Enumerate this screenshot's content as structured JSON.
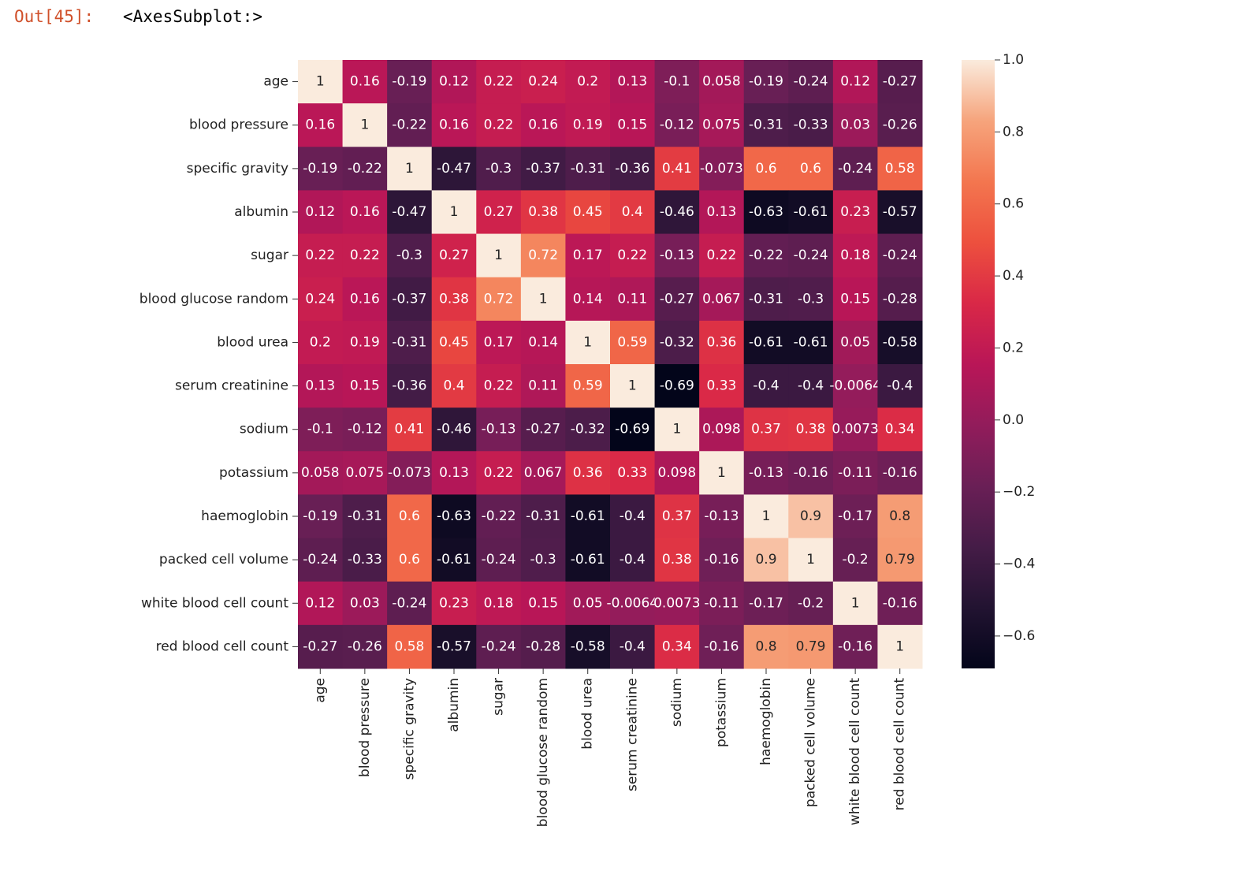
{
  "output_prompt": "Out[45]:",
  "repr": "<AxesSubplot:>",
  "chart_data": {
    "type": "heatmap",
    "categories": [
      "age",
      "blood pressure",
      "specific gravity",
      "albumin",
      "sugar",
      "blood glucose random",
      "blood urea",
      "serum creatinine",
      "sodium",
      "potassium",
      "haemoglobin",
      "packed cell volume",
      "white blood cell count",
      "red blood cell count"
    ],
    "z": [
      [
        1,
        0.16,
        -0.19,
        0.12,
        0.22,
        0.24,
        0.2,
        0.13,
        -0.1,
        0.058,
        -0.19,
        -0.24,
        0.12,
        -0.27
      ],
      [
        0.16,
        1,
        -0.22,
        0.16,
        0.22,
        0.16,
        0.19,
        0.15,
        -0.12,
        0.075,
        -0.31,
        -0.33,
        0.03,
        -0.26
      ],
      [
        -0.19,
        -0.22,
        1,
        -0.47,
        -0.3,
        -0.37,
        -0.31,
        -0.36,
        0.41,
        -0.073,
        0.6,
        0.6,
        -0.24,
        0.58
      ],
      [
        0.12,
        0.16,
        -0.47,
        1,
        0.27,
        0.38,
        0.45,
        0.4,
        -0.46,
        0.13,
        -0.63,
        -0.61,
        0.23,
        -0.57
      ],
      [
        0.22,
        0.22,
        -0.3,
        0.27,
        1,
        0.72,
        0.17,
        0.22,
        -0.13,
        0.22,
        -0.22,
        -0.24,
        0.18,
        -0.24
      ],
      [
        0.24,
        0.16,
        -0.37,
        0.38,
        0.72,
        1,
        0.14,
        0.11,
        -0.27,
        0.067,
        -0.31,
        -0.3,
        0.15,
        -0.28
      ],
      [
        0.2,
        0.19,
        -0.31,
        0.45,
        0.17,
        0.14,
        1,
        0.59,
        -0.32,
        0.36,
        -0.61,
        -0.61,
        0.05,
        -0.58
      ],
      [
        0.13,
        0.15,
        -0.36,
        0.4,
        0.22,
        0.11,
        0.59,
        1,
        -0.69,
        0.33,
        -0.4,
        -0.4,
        -0.0064,
        -0.4
      ],
      [
        -0.1,
        -0.12,
        0.41,
        -0.46,
        -0.13,
        -0.27,
        -0.32,
        -0.69,
        1,
        0.098,
        0.37,
        0.38,
        0.0073,
        0.34
      ],
      [
        0.058,
        0.075,
        -0.073,
        0.13,
        0.22,
        0.067,
        0.36,
        0.33,
        0.098,
        1,
        -0.13,
        -0.16,
        -0.11,
        -0.16
      ],
      [
        -0.19,
        -0.31,
        0.6,
        -0.63,
        -0.22,
        -0.31,
        -0.61,
        -0.4,
        0.37,
        -0.13,
        1,
        0.9,
        -0.17,
        0.8
      ],
      [
        -0.24,
        -0.33,
        0.6,
        -0.61,
        -0.24,
        -0.3,
        -0.61,
        -0.4,
        0.38,
        -0.16,
        0.9,
        1,
        -0.2,
        0.79
      ],
      [
        0.12,
        0.03,
        -0.24,
        0.23,
        0.18,
        0.15,
        0.05,
        -0.0064,
        0.0073,
        -0.11,
        -0.17,
        -0.2,
        1,
        -0.16
      ],
      [
        -0.27,
        -0.26,
        0.58,
        -0.57,
        -0.24,
        -0.28,
        -0.58,
        -0.4,
        0.34,
        -0.16,
        0.8,
        0.79,
        -0.16,
        1
      ]
    ],
    "colorscale": [
      "#03051a",
      "#221331",
      "#451c47",
      "#6a1f56",
      "#921c5b",
      "#b91657",
      "#d92847",
      "#ed503e",
      "#f3764f",
      "#f6a47c",
      "#faebdd"
    ],
    "zlim": [
      -0.69,
      1
    ],
    "zticks": [
      {
        "value": 1,
        "label": "1.0"
      },
      0.8,
      0.6,
      0.4,
      0.2,
      {
        "value": 0,
        "label": "0.0"
      },
      {
        "value": -0.2,
        "label": "−0.2"
      },
      {
        "value": -0.4,
        "label": "−0.4"
      },
      {
        "value": -0.6,
        "label": "−0.6"
      }
    ]
  }
}
